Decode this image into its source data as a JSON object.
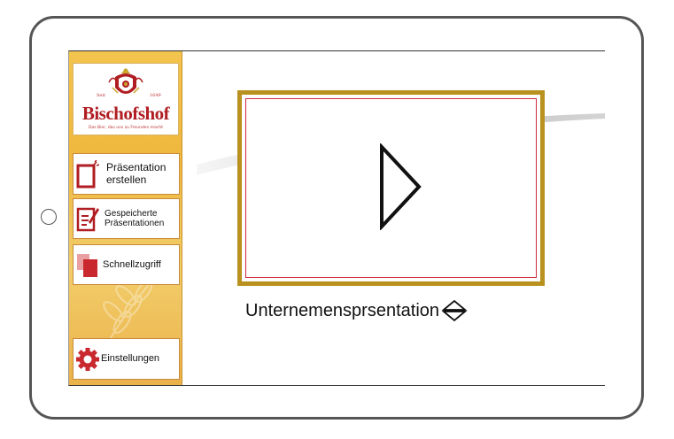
{
  "brand": {
    "name": "Bischofshof",
    "slogan": "Das Bier, das uns zu Freunden macht",
    "crest_left": "Seit",
    "crest_right": "1649"
  },
  "sidebar": {
    "items": [
      {
        "label": "Präsentation erstellen",
        "icon": "new-presentation-icon"
      },
      {
        "label": "Gespeicherte Präsentationen",
        "icon": "saved-presentations-icon"
      },
      {
        "label": "Schnellzugriff",
        "icon": "quick-access-icon"
      },
      {
        "label": "Einstellungen",
        "icon": "gear-icon"
      }
    ]
  },
  "main": {
    "presentation_title": "Unternemensprsentation",
    "play_icon": "play-icon",
    "sort_icon": "sort-up-down-icon"
  },
  "colors": {
    "accent_red": "#b01d22",
    "frame_gold": "#b8911e",
    "sidebar_gold": "#f0c04a",
    "bezel": "#555555"
  }
}
